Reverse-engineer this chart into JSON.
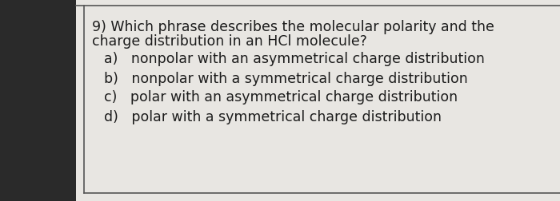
{
  "background_color": "#c8c8c8",
  "paper_color": "#e8e6e2",
  "left_strip_color": "#2a2a2a",
  "border_color": "#555555",
  "question_line1": "9) Which phrase describes the molecular polarity and the",
  "question_line2": "charge distribution in an HCl molecule?",
  "options": [
    "a)   nonpolar with an asymmetrical charge distribution",
    "b)   nonpolar with a symmetrical charge distribution",
    "c)   polar with an asymmetrical charge distribution",
    "d)   polar with a symmetrical charge distribution"
  ],
  "text_color": "#1c1c1c",
  "fontsize": 12.5,
  "q_fontsize": 12.5
}
